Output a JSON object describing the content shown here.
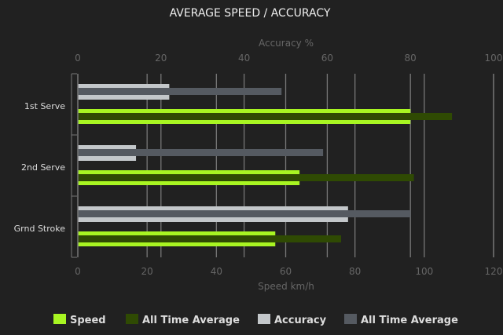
{
  "chart_data": {
    "type": "bar",
    "orientation": "horizontal",
    "title": "AVERAGE SPEED / ACCURACY",
    "categories": [
      "1st Serve",
      "2nd Serve",
      "Grnd Stroke"
    ],
    "x_axis_bottom": {
      "label": "Speed km/h",
      "range": [
        0,
        120
      ],
      "ticks": [
        "0",
        "20",
        "40",
        "60",
        "80",
        "100",
        "120"
      ]
    },
    "x_axis_top": {
      "label": "Accuracy %",
      "range": [
        0,
        100
      ],
      "ticks": [
        "0",
        "20",
        "40",
        "60",
        "80",
        "100"
      ]
    },
    "grid": true,
    "legend_position": "bottom",
    "series": [
      {
        "name": "Speed",
        "axis": "bottom",
        "color": "#a8f522",
        "values": [
          96,
          64,
          57
        ]
      },
      {
        "name": "All Time Average",
        "axis": "bottom",
        "color": "#2f4a03",
        "values": [
          108,
          97,
          76
        ]
      },
      {
        "name": "Accuracy",
        "axis": "top",
        "color": "#c3c7ca",
        "values": [
          22,
          14,
          65
        ]
      },
      {
        "name": "All Time Average",
        "axis": "top",
        "color": "#555a61",
        "values": [
          49,
          59,
          80
        ]
      }
    ]
  }
}
